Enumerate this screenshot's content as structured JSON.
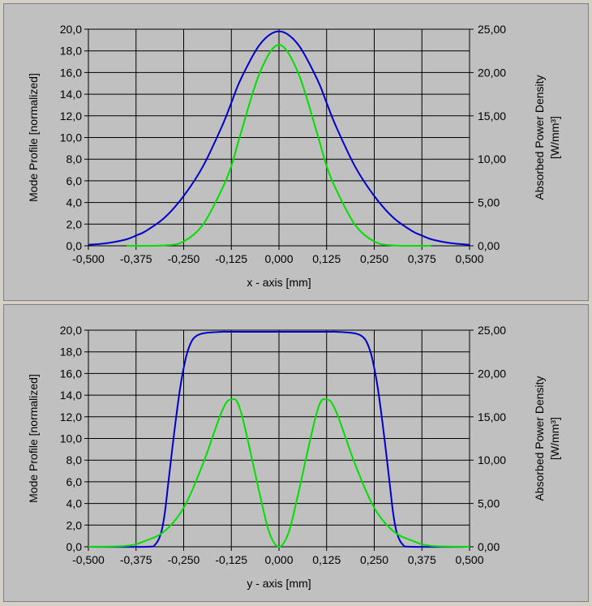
{
  "colors": {
    "panel_bg": "#c0c0c0",
    "grid": "#000000",
    "mode_line": "#0000cc",
    "power_line": "#00e000"
  },
  "chart_data": [
    {
      "type": "line",
      "xlabel": "x - axis [mm]",
      "ylabel_left": "Mode Profile [normalized]",
      "ylabel_right": [
        "Absorbed Power Density",
        "[W/mm³]"
      ],
      "xlim": [
        -0.5,
        0.5
      ],
      "ylim_left": [
        0,
        20
      ],
      "ylim_right": [
        0,
        25
      ],
      "grid": true,
      "x_ticks": [
        "-0,500",
        "-0,375",
        "-0,250",
        "-0,125",
        "0,000",
        "0,125",
        "0,250",
        "0,375",
        "0,500"
      ],
      "y_ticks_left": [
        "0,0",
        "2,0",
        "4,0",
        "6,0",
        "8,0",
        "10,0",
        "12,0",
        "14,0",
        "16,0",
        "18,0",
        "20,0"
      ],
      "y_ticks_right": [
        "0,00",
        "5,00",
        "10,00",
        "15,00",
        "20,00",
        "25,00"
      ],
      "series": [
        {
          "axis": "left",
          "color": "#0000cc",
          "x": [
            -0.5,
            -0.45,
            -0.4,
            -0.375,
            -0.35,
            -0.3,
            -0.25,
            -0.2,
            -0.15,
            -0.125,
            -0.1,
            -0.05,
            0,
            0.05,
            0.1,
            0.125,
            0.15,
            0.2,
            0.25,
            0.3,
            0.35,
            0.375,
            0.4,
            0.45,
            0.5
          ],
          "y": [
            0.1,
            0.25,
            0.6,
            0.95,
            1.35,
            2.6,
            4.6,
            7.3,
            11.0,
            13.2,
            15.4,
            18.6,
            19.8,
            18.6,
            15.4,
            13.2,
            11.0,
            7.3,
            4.6,
            2.6,
            1.35,
            0.95,
            0.6,
            0.25,
            0.1
          ]
        },
        {
          "axis": "right",
          "color": "#00e000",
          "x": [
            -0.4,
            -0.3,
            -0.25,
            -0.2,
            -0.15,
            -0.125,
            -0.1,
            -0.05,
            0,
            0.05,
            0.1,
            0.125,
            0.15,
            0.2,
            0.25,
            0.3,
            0.4
          ],
          "y": [
            0.0,
            0.05,
            0.5,
            2.4,
            6.5,
            9.2,
            13.0,
            20.0,
            23.2,
            20.0,
            13.0,
            9.2,
            6.5,
            2.4,
            0.5,
            0.05,
            0.0
          ]
        }
      ]
    },
    {
      "type": "line",
      "xlabel": "y - axis [mm]",
      "ylabel_left": "Mode Profile [normalized]",
      "ylabel_right": [
        "Absorbed Power Density",
        "[W/mm³]"
      ],
      "xlim": [
        -0.5,
        0.5
      ],
      "ylim_left": [
        0,
        20
      ],
      "ylim_right": [
        0,
        25
      ],
      "grid": true,
      "x_ticks": [
        "-0,500",
        "-0,375",
        "-0,250",
        "-0,125",
        "0,000",
        "0,125",
        "0,250",
        "0,375",
        "0,500"
      ],
      "y_ticks_left": [
        "0,0",
        "2,0",
        "4,0",
        "6,0",
        "8,0",
        "10,0",
        "12,0",
        "14,0",
        "16,0",
        "18,0",
        "20,0"
      ],
      "y_ticks_right": [
        "0,00",
        "5,00",
        "10,00",
        "15,00",
        "20,00",
        "25,00"
      ],
      "series": [
        {
          "axis": "left",
          "color": "#0000cc",
          "x": [
            -0.5,
            -0.35,
            -0.325,
            -0.31,
            -0.3,
            -0.29,
            -0.275,
            -0.26,
            -0.25,
            -0.24,
            -0.225,
            -0.2,
            -0.15,
            -0.125,
            0,
            0.125,
            0.15,
            0.2,
            0.225,
            0.24,
            0.25,
            0.26,
            0.275,
            0.29,
            0.3,
            0.31,
            0.325,
            0.35,
            0.5
          ],
          "y": [
            0,
            0,
            0.2,
            1.2,
            3.0,
            6.0,
            10.5,
            14.5,
            16.5,
            18.0,
            19.2,
            19.7,
            19.85,
            19.85,
            19.85,
            19.85,
            19.85,
            19.7,
            19.2,
            18.0,
            16.5,
            14.5,
            10.5,
            6.0,
            3.0,
            1.2,
            0.2,
            0,
            0
          ]
        },
        {
          "axis": "right",
          "color": "#00e000",
          "x": [
            -0.5,
            -0.4,
            -0.35,
            -0.3,
            -0.25,
            -0.2,
            -0.15,
            -0.125,
            -0.1,
            -0.05,
            -0.025,
            0,
            0.025,
            0.05,
            0.1,
            0.125,
            0.15,
            0.2,
            0.25,
            0.3,
            0.35,
            0.4,
            0.5
          ],
          "y": [
            0,
            0.1,
            0.7,
            1.8,
            4.5,
            9.5,
            15.6,
            17.0,
            15.6,
            6.0,
            1.6,
            0,
            1.6,
            6.0,
            15.6,
            17.0,
            15.6,
            9.5,
            4.5,
            1.8,
            0.7,
            0.1,
            0
          ]
        }
      ]
    }
  ]
}
